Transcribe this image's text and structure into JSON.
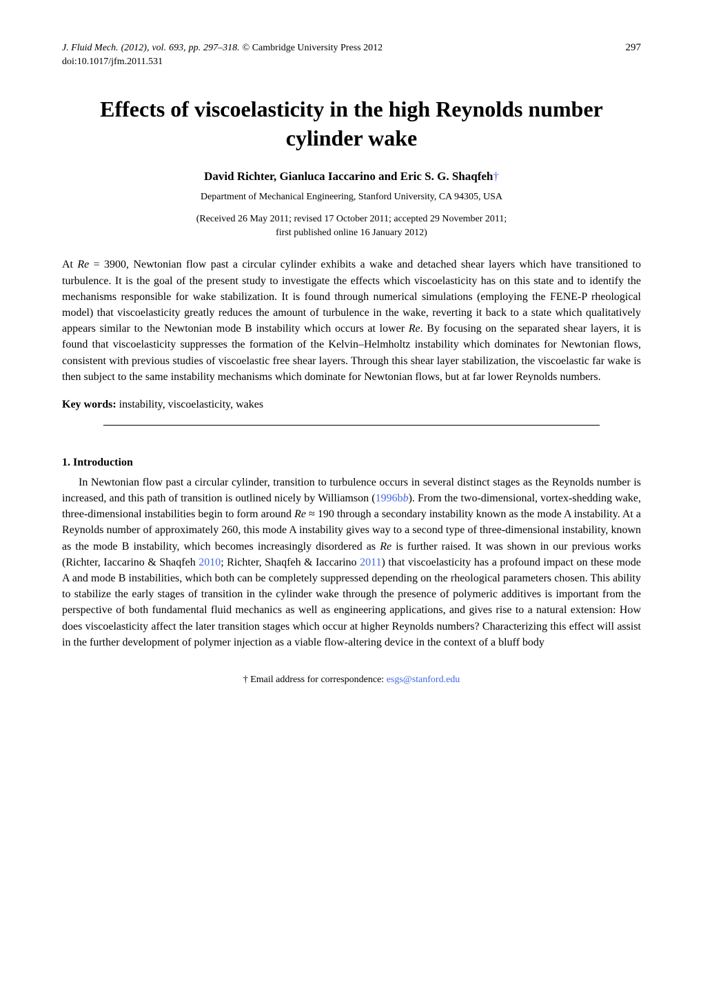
{
  "header": {
    "journal": "J. Fluid Mech.",
    "year": "(2012),",
    "vol_label": "vol.",
    "vol": "693,",
    "pp_label": "pp.",
    "pp": "297–318.",
    "copyright": "© Cambridge University Press 2012",
    "page_number": "297",
    "doi": "doi:10.1017/jfm.2011.531"
  },
  "title": "Effects of viscoelasticity in the high Reynolds number cylinder wake",
  "authors": "David Richter, Gianluca Iaccarino and Eric S. G. Shaqfeh",
  "dagger": "†",
  "affiliation": "Department of Mechanical Engineering, Stanford University, CA 94305, USA",
  "dates_line1": "(Received 26 May 2011; revised 17 October 2011; accepted 29 November 2011;",
  "dates_line2": "first published online 16 January 2012)",
  "abstract": "At Re = 3900, Newtonian flow past a circular cylinder exhibits a wake and detached shear layers which have transitioned to turbulence. It is the goal of the present study to investigate the effects which viscoelasticity has on this state and to identify the mechanisms responsible for wake stabilization. It is found through numerical simulations (employing the FENE-P rheological model) that viscoelasticity greatly reduces the amount of turbulence in the wake, reverting it back to a state which qualitatively appears similar to the Newtonian mode B instability which occurs at lower Re. By focusing on the separated shear layers, it is found that viscoelasticity suppresses the formation of the Kelvin–Helmholtz instability which dominates for Newtonian flows, consistent with previous studies of viscoelastic free shear layers. Through this shear layer stabilization, the viscoelastic far wake is then subject to the same instability mechanisms which dominate for Newtonian flows, but at far lower Reynolds numbers.",
  "keywords_label": "Key words:",
  "keywords": " instability, viscoelasticity, wakes",
  "section1_heading": "1. Introduction",
  "intro_p1_a": "In Newtonian flow past a circular cylinder, transition to turbulence occurs in several distinct stages as the Reynolds number is increased, and this path of transition is outlined nicely by Williamson (",
  "intro_cite1": "1996b",
  "intro_p1_b": "). From the two-dimensional, vortex-shedding wake, three-dimensional instabilities begin to form around ",
  "intro_re_approx": "Re ≈ 190",
  "intro_p1_c": " through a secondary instability known as the mode A instability. At a Reynolds number of approximately 260, this mode A instability gives way to a second type of three-dimensional instability, known as the mode B instability, which becomes increasingly disordered as ",
  "intro_re": "Re",
  "intro_p1_d": " is further raised. It was shown in our previous works (Richter, Iaccarino & Shaqfeh ",
  "intro_cite2": "2010",
  "intro_p1_e": "; Richter, Shaqfeh & Iaccarino ",
  "intro_cite3": "2011",
  "intro_p1_f": ") that viscoelasticity has a profound impact on these mode A and mode B instabilities, which both can be completely suppressed depending on the rheological parameters chosen. This ability to stabilize the early stages of transition in the cylinder wake through the presence of polymeric additives is important from the perspective of both fundamental fluid mechanics as well as engineering applications, and gives rise to a natural extension: How does viscoelasticity affect the later transition stages which occur at higher Reynolds numbers? Characterizing this effect will assist in the further development of polymer injection as a viable flow-altering device in the context of a bluff body",
  "footer_label": "† Email address for correspondence: ",
  "footer_email": "esgs@stanford.edu",
  "colors": {
    "link_color": "#4169E1",
    "text_color": "#000000",
    "background": "#ffffff"
  }
}
